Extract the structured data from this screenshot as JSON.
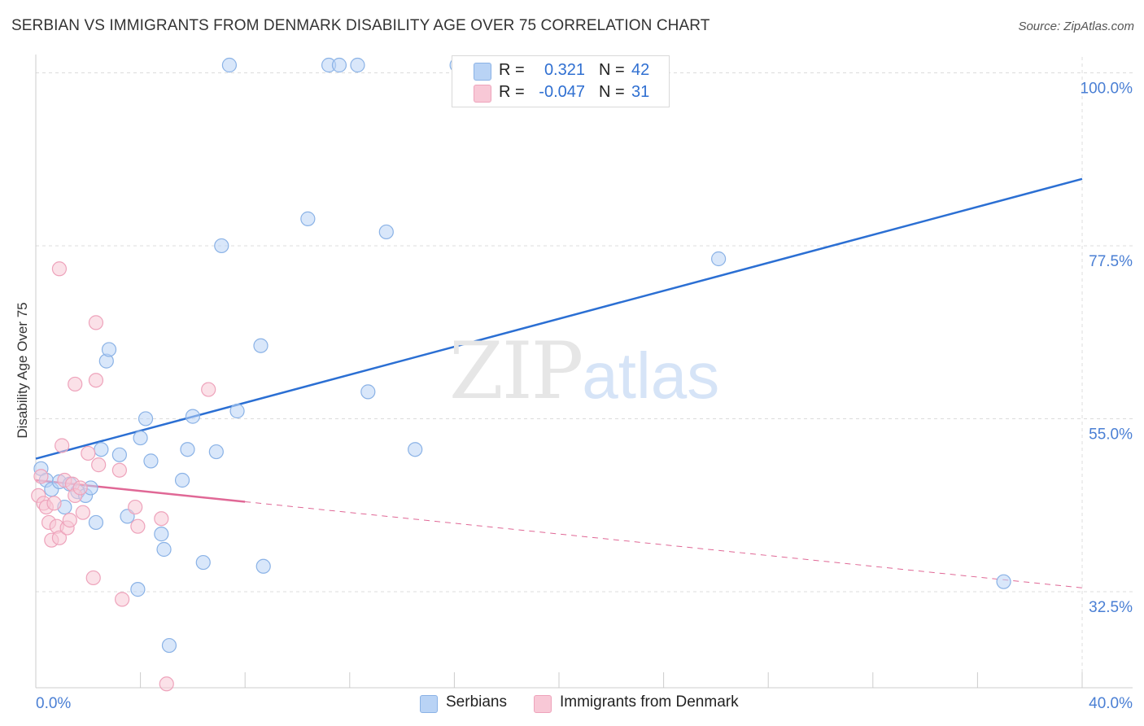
{
  "header": {
    "title": "SERBIAN VS IMMIGRANTS FROM DENMARK DISABILITY AGE OVER 75 CORRELATION CHART",
    "source": "Source: ZipAtlas.com"
  },
  "watermark": {
    "zip": "ZIP",
    "atlas": "atlas"
  },
  "legend_top": {
    "rows": [
      {
        "r_label": "R =",
        "r_value": "0.321",
        "n_label": "N =",
        "n_value": "42"
      },
      {
        "r_label": "R =",
        "r_value": "-0.047",
        "n_label": "N =",
        "n_value": "31"
      }
    ]
  },
  "legend_bottom": {
    "series1": "Serbians",
    "series2": "Immigrants from Denmark"
  },
  "colors": {
    "serbians_fill": "#b9d3f5",
    "serbians_stroke": "#8ab2e6",
    "serbians_line": "#2b6fd3",
    "denmark_fill": "#f8c8d6",
    "denmark_stroke": "#eea3bb",
    "denmark_line": "#e06896",
    "grid": "#dcdcdc",
    "tick_text": "#4a7fd4"
  },
  "chart_data": {
    "type": "scatter",
    "title": "SERBIAN VS IMMIGRANTS FROM DENMARK DISABILITY AGE OVER 75 CORRELATION CHART",
    "xlabel": "",
    "ylabel": "Disability Age Over 75",
    "xlim": [
      0,
      40
    ],
    "ylim": [
      20,
      101
    ],
    "x_tick_labels": [
      "0.0%",
      "40.0%"
    ],
    "y_ticks": [
      32.5,
      55.0,
      77.5,
      100.0
    ],
    "y_tick_labels": [
      "32.5%",
      "55.0%",
      "77.5%",
      "100.0%"
    ],
    "grid": true,
    "legend_position": "top-center",
    "series": [
      {
        "name": "Serbians",
        "r": 0.321,
        "n": 42,
        "points": [
          [
            0.2,
            48.5
          ],
          [
            0.4,
            47.0
          ],
          [
            0.6,
            45.8
          ],
          [
            0.9,
            46.8
          ],
          [
            1.1,
            43.5
          ],
          [
            1.3,
            46.5
          ],
          [
            1.6,
            45.5
          ],
          [
            1.9,
            45.0
          ],
          [
            2.1,
            46.0
          ],
          [
            2.3,
            41.5
          ],
          [
            2.5,
            51.0
          ],
          [
            2.7,
            62.5
          ],
          [
            2.8,
            64.0
          ],
          [
            3.2,
            50.3
          ],
          [
            3.5,
            42.3
          ],
          [
            3.9,
            32.8
          ],
          [
            4.0,
            52.5
          ],
          [
            4.2,
            55.0
          ],
          [
            4.4,
            49.5
          ],
          [
            4.8,
            40.0
          ],
          [
            4.9,
            38.0
          ],
          [
            5.1,
            25.5
          ],
          [
            5.6,
            47.0
          ],
          [
            5.8,
            51.0
          ],
          [
            6.0,
            55.3
          ],
          [
            6.4,
            36.3
          ],
          [
            6.9,
            50.7
          ],
          [
            7.1,
            77.5
          ],
          [
            7.4,
            101.0
          ],
          [
            7.7,
            56.0
          ],
          [
            8.6,
            64.5
          ],
          [
            8.7,
            35.8
          ],
          [
            10.4,
            81.0
          ],
          [
            11.2,
            101.0
          ],
          [
            11.6,
            101.0
          ],
          [
            12.3,
            101.0
          ],
          [
            12.7,
            58.5
          ],
          [
            13.4,
            79.3
          ],
          [
            14.5,
            51.0
          ],
          [
            16.1,
            101.0
          ],
          [
            26.1,
            75.8
          ],
          [
            37.0,
            33.8
          ]
        ]
      },
      {
        "name": "Immigrants from Denmark",
        "r": -0.047,
        "n": 31,
        "points": [
          [
            0.1,
            45.0
          ],
          [
            0.2,
            47.5
          ],
          [
            0.3,
            44.0
          ],
          [
            0.4,
            43.5
          ],
          [
            0.5,
            41.5
          ],
          [
            0.6,
            39.2
          ],
          [
            0.7,
            44.0
          ],
          [
            0.8,
            41.0
          ],
          [
            0.9,
            39.5
          ],
          [
            0.9,
            74.5
          ],
          [
            1.0,
            51.5
          ],
          [
            1.1,
            47.0
          ],
          [
            1.2,
            40.8
          ],
          [
            1.3,
            41.8
          ],
          [
            1.4,
            46.5
          ],
          [
            1.5,
            45.0
          ],
          [
            1.5,
            59.5
          ],
          [
            1.7,
            46.0
          ],
          [
            1.8,
            42.8
          ],
          [
            2.0,
            50.5
          ],
          [
            2.2,
            34.3
          ],
          [
            2.3,
            67.5
          ],
          [
            2.3,
            60.0
          ],
          [
            2.4,
            49.0
          ],
          [
            3.2,
            48.3
          ],
          [
            3.3,
            31.5
          ],
          [
            3.8,
            43.5
          ],
          [
            3.9,
            41.0
          ],
          [
            4.8,
            42.0
          ],
          [
            5.0,
            20.5
          ],
          [
            6.6,
            58.8
          ]
        ]
      }
    ],
    "trend_lines": [
      {
        "series": "Serbians",
        "x": [
          0,
          40
        ],
        "y": [
          49.8,
          86.2
        ],
        "style": "solid"
      },
      {
        "series": "Immigrants from Denmark",
        "x": [
          0,
          8
        ],
        "y": [
          47.0,
          44.2
        ],
        "style": "solid"
      },
      {
        "series": "Immigrants from Denmark",
        "x": [
          8,
          40
        ],
        "y": [
          44.2,
          33.0
        ],
        "style": "dashed"
      }
    ]
  }
}
